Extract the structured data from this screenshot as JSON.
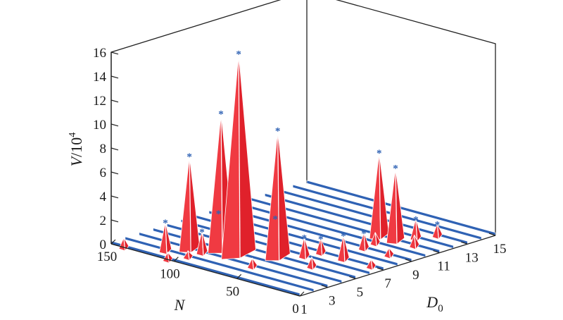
{
  "chart_data": {
    "type": "3d-surface",
    "axes": {
      "y": {
        "label_var": "V",
        "label_sep": "/",
        "label_base": "10",
        "label_exp": "4",
        "ticks": [
          "0",
          "2",
          "4",
          "6",
          "8",
          "10",
          "12",
          "14",
          "16"
        ],
        "range": [
          0,
          16
        ]
      },
      "n": {
        "label": "N",
        "ticks": [
          "0",
          "50",
          "100",
          "150"
        ],
        "range": [
          0,
          150
        ]
      },
      "d": {
        "label_var": "D",
        "label_sub": "0",
        "ticks": [
          "1",
          "3",
          "5",
          "7",
          "9",
          "11",
          "13",
          "15"
        ],
        "range": [
          1,
          15
        ]
      }
    },
    "baseline_color": "#2f62b4",
    "peak_color": "#e0212b",
    "marker_color": "#2f62b4",
    "peaks": [
      {
        "d": 4,
        "n": 82,
        "v": 16.8
      },
      {
        "d": 4,
        "n": 96,
        "v": 11.4
      },
      {
        "d": 3,
        "n": 110,
        "v": 7.8
      },
      {
        "d": 5,
        "n": 62,
        "v": 10.6
      },
      {
        "d": 11,
        "n": 48,
        "v": 7.0
      },
      {
        "d": 11,
        "n": 35,
        "v": 6.1
      },
      {
        "d": 4,
        "n": 98,
        "v": 3.0
      },
      {
        "d": 5,
        "n": 64,
        "v": 3.2
      },
      {
        "d": 2,
        "n": 118,
        "v": 2.4
      },
      {
        "d": 3,
        "n": 100,
        "v": 1.8
      },
      {
        "d": 6,
        "n": 52,
        "v": 1.6
      },
      {
        "d": 7,
        "n": 50,
        "v": 1.2
      },
      {
        "d": 7,
        "n": 32,
        "v": 2.0
      },
      {
        "d": 9,
        "n": 38,
        "v": 1.3
      },
      {
        "d": 10,
        "n": 40,
        "v": 0.9
      },
      {
        "d": 11,
        "n": 20,
        "v": 0.9
      },
      {
        "d": 12,
        "n": 30,
        "v": 1.6
      },
      {
        "d": 13,
        "n": 24,
        "v": 1.0
      },
      {
        "d": 1,
        "n": 140,
        "v": 0.8
      },
      {
        "d": 1,
        "n": 105,
        "v": 0.6
      },
      {
        "d": 2,
        "n": 100,
        "v": 0.5
      },
      {
        "d": 3,
        "n": 60,
        "v": 0.7
      },
      {
        "d": 5,
        "n": 35,
        "v": 0.8
      },
      {
        "d": 7,
        "n": 10,
        "v": 0.6
      },
      {
        "d": 9,
        "n": 18,
        "v": 0.6
      }
    ]
  }
}
